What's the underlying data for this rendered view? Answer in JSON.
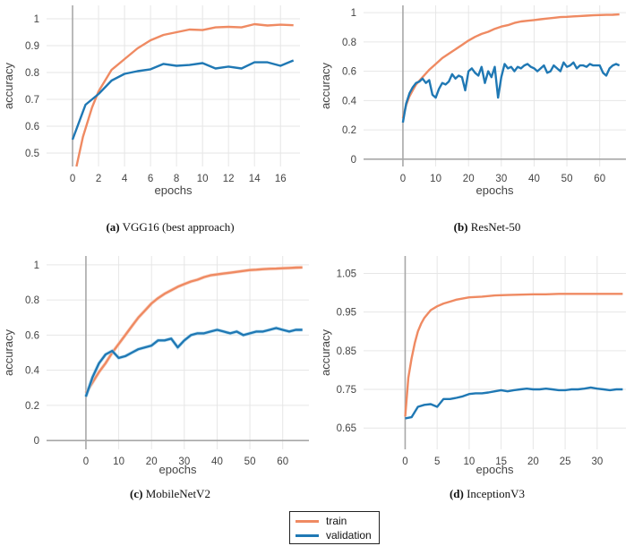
{
  "colors": {
    "train": "#ef8a62",
    "validation": "#1f78b4",
    "train_raw": "#f6c7b3",
    "validation_raw": "#9fd0ea"
  },
  "legend": {
    "train": "train",
    "validation": "validation"
  },
  "chart_data": [
    {
      "type": "line",
      "caption_letter": "(a)",
      "caption_text": "VGG16 (best approach)",
      "xlabel": "epochs",
      "ylabel": "accuracy",
      "xlim": [
        -2,
        17.5
      ],
      "ylim": [
        0.45,
        1.05
      ],
      "xticks": [
        0,
        2,
        4,
        6,
        8,
        10,
        12,
        14,
        16
      ],
      "yticks": [
        0.5,
        0.6,
        0.7,
        0.8,
        0.9,
        1
      ],
      "ytick_labels": [
        "0.5",
        "0.6",
        "0.7",
        "0.8",
        "0.9",
        "1"
      ],
      "series": [
        {
          "name": "train",
          "x": [
            0.3,
            0.8,
            1.5,
            2,
            3,
            4,
            5,
            6,
            7,
            8,
            9,
            10,
            11,
            12,
            13,
            14,
            15,
            16,
            17
          ],
          "y": [
            0.45,
            0.56,
            0.67,
            0.73,
            0.81,
            0.85,
            0.89,
            0.92,
            0.94,
            0.95,
            0.96,
            0.958,
            0.968,
            0.97,
            0.968,
            0.98,
            0.975,
            0.978,
            0.976
          ]
        },
        {
          "name": "validation",
          "x": [
            0,
            1,
            2,
            3,
            4,
            5,
            6,
            7,
            8,
            9,
            10,
            11,
            12,
            13,
            14,
            15,
            16,
            17
          ],
          "y": [
            0.55,
            0.68,
            0.72,
            0.77,
            0.795,
            0.805,
            0.812,
            0.832,
            0.825,
            0.828,
            0.835,
            0.815,
            0.822,
            0.815,
            0.838,
            0.838,
            0.825,
            0.845
          ]
        }
      ]
    },
    {
      "type": "line",
      "caption_letter": "(b)",
      "caption_text": "ResNet-50",
      "xlabel": "epochs",
      "ylabel": "accuracy",
      "xlim": [
        -12,
        68
      ],
      "ylim": [
        -0.05,
        1.05
      ],
      "xticks": [
        0,
        10,
        20,
        30,
        40,
        50,
        60
      ],
      "yticks": [
        0,
        0.2,
        0.4,
        0.6,
        0.8,
        1
      ],
      "ytick_labels": [
        "0",
        "0.2",
        "0.4",
        "0.6",
        "0.8",
        "1"
      ],
      "series": [
        {
          "name": "train",
          "x": [
            0,
            1,
            2,
            3,
            4,
            6,
            8,
            10,
            12,
            14,
            16,
            18,
            20,
            22,
            24,
            26,
            28,
            30,
            32,
            34,
            36,
            38,
            40,
            42,
            44,
            46,
            48,
            50,
            52,
            54,
            56,
            58,
            60,
            62,
            64,
            66
          ],
          "y": [
            0.28,
            0.37,
            0.43,
            0.47,
            0.51,
            0.56,
            0.61,
            0.65,
            0.69,
            0.72,
            0.75,
            0.78,
            0.81,
            0.835,
            0.855,
            0.87,
            0.89,
            0.905,
            0.915,
            0.93,
            0.94,
            0.945,
            0.95,
            0.955,
            0.96,
            0.965,
            0.97,
            0.972,
            0.975,
            0.977,
            0.98,
            0.982,
            0.984,
            0.985,
            0.986,
            0.988
          ]
        },
        {
          "name": "validation",
          "x": [
            0,
            1,
            2,
            3,
            4,
            5,
            6,
            7,
            8,
            9,
            10,
            11,
            12,
            13,
            14,
            15,
            16,
            17,
            18,
            19,
            20,
            21,
            22,
            23,
            24,
            25,
            26,
            27,
            28,
            29,
            30,
            31,
            32,
            33,
            34,
            35,
            36,
            37,
            38,
            39,
            40,
            41,
            42,
            43,
            44,
            45,
            46,
            47,
            48,
            49,
            50,
            51,
            52,
            53,
            54,
            55,
            56,
            57,
            58,
            59,
            60,
            61,
            62,
            63,
            64,
            65,
            66
          ],
          "y": [
            0.25,
            0.38,
            0.45,
            0.49,
            0.52,
            0.53,
            0.55,
            0.52,
            0.54,
            0.44,
            0.42,
            0.48,
            0.52,
            0.51,
            0.53,
            0.58,
            0.55,
            0.57,
            0.56,
            0.47,
            0.6,
            0.62,
            0.59,
            0.57,
            0.63,
            0.52,
            0.6,
            0.56,
            0.63,
            0.42,
            0.56,
            0.65,
            0.62,
            0.63,
            0.6,
            0.63,
            0.62,
            0.64,
            0.65,
            0.63,
            0.62,
            0.6,
            0.62,
            0.64,
            0.59,
            0.6,
            0.64,
            0.62,
            0.6,
            0.66,
            0.63,
            0.64,
            0.66,
            0.62,
            0.64,
            0.64,
            0.63,
            0.65,
            0.64,
            0.64,
            0.64,
            0.59,
            0.57,
            0.62,
            0.64,
            0.65,
            0.64
          ]
        }
      ]
    },
    {
      "type": "line",
      "caption_letter": "(c)",
      "caption_text": "MobileNetV2",
      "xlabel": "epochs",
      "ylabel": "accuracy",
      "xlim": [
        -12,
        68
      ],
      "ylim": [
        -0.05,
        1.05
      ],
      "xticks": [
        0,
        10,
        20,
        30,
        40,
        50,
        60
      ],
      "yticks": [
        0,
        0.2,
        0.4,
        0.6,
        0.8,
        1
      ],
      "ytick_labels": [
        "0",
        "0.2",
        "0.4",
        "0.6",
        "0.8",
        "1"
      ],
      "series": [
        {
          "name": "train",
          "x": [
            0,
            2,
            4,
            6,
            8,
            10,
            12,
            14,
            16,
            18,
            20,
            22,
            24,
            26,
            28,
            30,
            32,
            34,
            36,
            38,
            40,
            42,
            44,
            46,
            48,
            50,
            52,
            54,
            56,
            58,
            60,
            62,
            64,
            66
          ],
          "y": [
            0.27,
            0.33,
            0.39,
            0.44,
            0.5,
            0.55,
            0.6,
            0.65,
            0.7,
            0.74,
            0.78,
            0.81,
            0.835,
            0.855,
            0.875,
            0.89,
            0.905,
            0.915,
            0.93,
            0.94,
            0.945,
            0.95,
            0.955,
            0.96,
            0.965,
            0.97,
            0.972,
            0.975,
            0.977,
            0.978,
            0.98,
            0.982,
            0.984,
            0.985
          ]
        },
        {
          "name": "validation",
          "x": [
            0,
            2,
            4,
            6,
            8,
            10,
            12,
            14,
            16,
            18,
            20,
            22,
            24,
            26,
            28,
            30,
            32,
            34,
            36,
            38,
            40,
            42,
            44,
            46,
            48,
            50,
            52,
            54,
            56,
            58,
            60,
            62,
            64,
            66
          ],
          "y": [
            0.25,
            0.36,
            0.44,
            0.49,
            0.51,
            0.47,
            0.48,
            0.5,
            0.52,
            0.53,
            0.54,
            0.57,
            0.57,
            0.58,
            0.53,
            0.57,
            0.6,
            0.61,
            0.61,
            0.62,
            0.63,
            0.62,
            0.61,
            0.62,
            0.6,
            0.61,
            0.62,
            0.62,
            0.63,
            0.64,
            0.63,
            0.62,
            0.63,
            0.63
          ]
        }
      ]
    },
    {
      "type": "line",
      "caption_letter": "(d)",
      "caption_text": "InceptionV3",
      "xlabel": "epochs",
      "ylabel": "accuracy",
      "xlim": [
        -6.5,
        34.5
      ],
      "ylim": [
        0.595,
        1.095
      ],
      "xticks": [
        0,
        5,
        10,
        15,
        20,
        25,
        30
      ],
      "yticks": [
        0.65,
        0.75,
        0.85,
        0.95,
        1.05
      ],
      "ytick_labels": [
        "0.65",
        "0.75",
        "0.85",
        "0.95",
        "1.05"
      ],
      "series": [
        {
          "name": "train",
          "x": [
            0,
            0.5,
            1,
            1.5,
            2,
            2.5,
            3,
            4,
            5,
            6,
            7,
            8,
            10,
            12,
            14,
            16,
            18,
            20,
            22,
            24,
            26,
            28,
            30,
            32,
            34
          ],
          "y": [
            0.68,
            0.78,
            0.83,
            0.87,
            0.9,
            0.92,
            0.935,
            0.955,
            0.965,
            0.972,
            0.977,
            0.982,
            0.988,
            0.99,
            0.993,
            0.994,
            0.995,
            0.996,
            0.996,
            0.997,
            0.997,
            0.997,
            0.997,
            0.997,
            0.997
          ]
        },
        {
          "name": "validation",
          "x": [
            0,
            1,
            2,
            3,
            4,
            5,
            6,
            7,
            8,
            9,
            10,
            11,
            12,
            13,
            14,
            15,
            16,
            17,
            18,
            19,
            20,
            21,
            22,
            23,
            24,
            25,
            26,
            27,
            28,
            29,
            30,
            31,
            32,
            33,
            34
          ],
          "y": [
            0.675,
            0.678,
            0.705,
            0.71,
            0.712,
            0.705,
            0.725,
            0.725,
            0.728,
            0.732,
            0.738,
            0.74,
            0.74,
            0.742,
            0.745,
            0.748,
            0.745,
            0.748,
            0.75,
            0.752,
            0.75,
            0.75,
            0.752,
            0.75,
            0.748,
            0.748,
            0.75,
            0.75,
            0.752,
            0.755,
            0.752,
            0.75,
            0.748,
            0.75,
            0.75
          ]
        }
      ]
    }
  ]
}
